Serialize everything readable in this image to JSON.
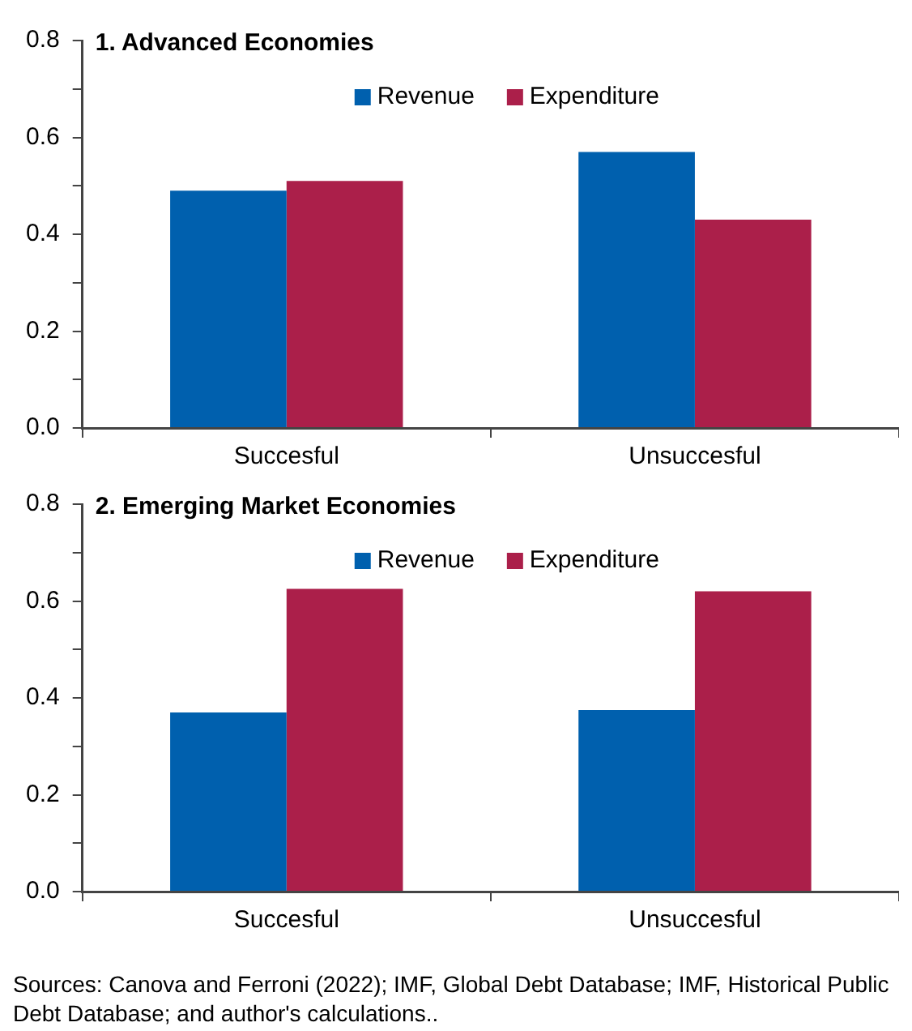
{
  "chart_data": [
    {
      "type": "bar",
      "title": "1. Advanced Economies",
      "categories": [
        "Succesful",
        "Unsuccesful"
      ],
      "series": [
        {
          "name": "Revenue",
          "color": "#0060ae",
          "values": [
            0.49,
            0.57
          ]
        },
        {
          "name": "Expenditure",
          "color": "#ab1f4a",
          "values": [
            0.51,
            0.43
          ]
        }
      ],
      "ylim": [
        0,
        0.8
      ],
      "yticks": [
        {
          "value": 0,
          "label": "0.0"
        },
        {
          "value": 0.1,
          "label": null
        },
        {
          "value": 0.2,
          "label": "0.2"
        },
        {
          "value": 0.3,
          "label": null
        },
        {
          "value": 0.4,
          "label": "0.4"
        },
        {
          "value": 0.5,
          "label": null
        },
        {
          "value": 0.6,
          "label": "0.6"
        },
        {
          "value": 0.7,
          "label": null
        },
        {
          "value": 0.8,
          "label": "0.8"
        }
      ],
      "grid": false,
      "legend": "top"
    },
    {
      "type": "bar",
      "title": "2. Emerging Market Economies",
      "categories": [
        "Succesful",
        "Unsuccesful"
      ],
      "series": [
        {
          "name": "Revenue",
          "color": "#0060ae",
          "values": [
            0.37,
            0.375
          ]
        },
        {
          "name": "Expenditure",
          "color": "#ab1f4a",
          "values": [
            0.625,
            0.62
          ]
        }
      ],
      "ylim": [
        0,
        0.8
      ],
      "yticks": [
        {
          "value": 0,
          "label": "0.0"
        },
        {
          "value": 0.1,
          "label": null
        },
        {
          "value": 0.2,
          "label": "0.2"
        },
        {
          "value": 0.3,
          "label": null
        },
        {
          "value": 0.4,
          "label": "0.4"
        },
        {
          "value": 0.5,
          "label": null
        },
        {
          "value": 0.6,
          "label": "0.6"
        },
        {
          "value": 0.7,
          "label": null
        },
        {
          "value": 0.8,
          "label": "0.8"
        }
      ],
      "grid": false,
      "legend": "top",
      "annotations": [
        "Sources: Canova and Ferroni (2022); IMF, Global Debt Database; IMF, Historical Public Debt Database; and author's calculations.."
      ]
    }
  ]
}
